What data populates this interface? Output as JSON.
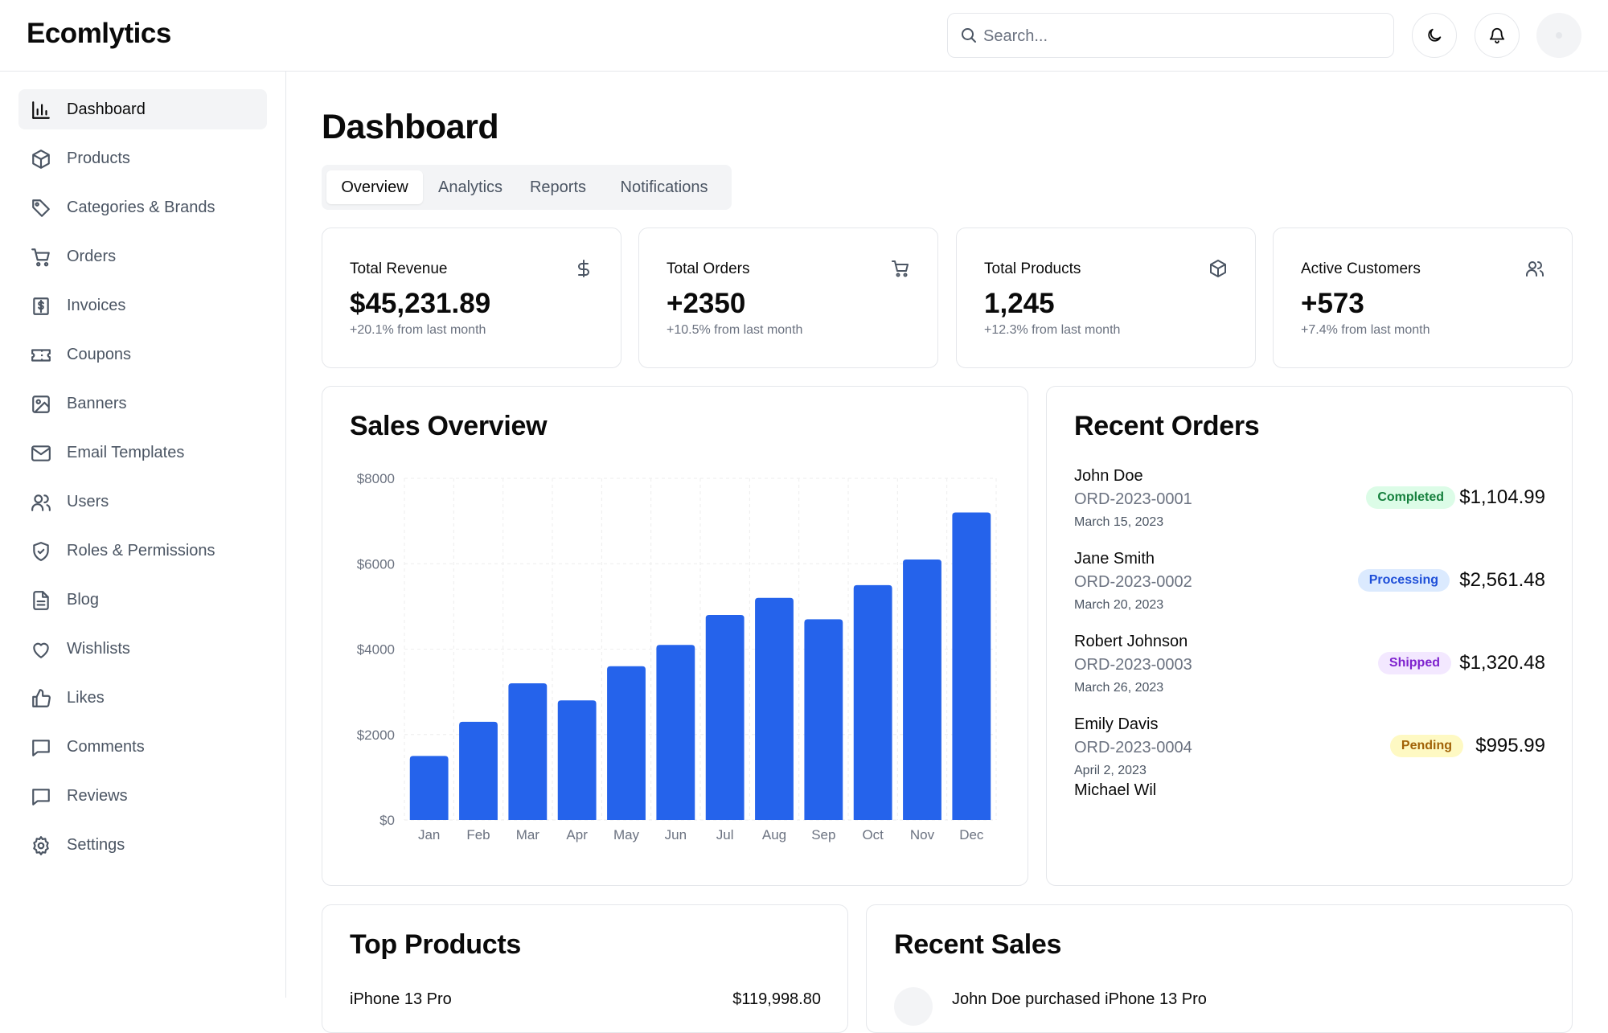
{
  "app": {
    "name": "Ecomlytics"
  },
  "header": {
    "search_placeholder": "Search...",
    "icons": [
      "search-icon",
      "moon-icon",
      "bell-icon"
    ]
  },
  "sidebar": {
    "items": [
      {
        "label": "Dashboard",
        "icon": "bar-chart-icon",
        "active": true
      },
      {
        "label": "Products",
        "icon": "package-icon"
      },
      {
        "label": "Categories & Brands",
        "icon": "tag-icon"
      },
      {
        "label": "Orders",
        "icon": "cart-icon"
      },
      {
        "label": "Invoices",
        "icon": "invoice-icon"
      },
      {
        "label": "Coupons",
        "icon": "ticket-icon"
      },
      {
        "label": "Banners",
        "icon": "image-icon"
      },
      {
        "label": "Email Templates",
        "icon": "mail-icon"
      },
      {
        "label": "Users",
        "icon": "users-icon"
      },
      {
        "label": "Roles & Permissions",
        "icon": "shield-icon"
      },
      {
        "label": "Blog",
        "icon": "file-text-icon"
      },
      {
        "label": "Wishlists",
        "icon": "heart-icon"
      },
      {
        "label": "Likes",
        "icon": "thumbs-up-icon"
      },
      {
        "label": "Comments",
        "icon": "comment-icon"
      },
      {
        "label": "Reviews",
        "icon": "review-icon"
      },
      {
        "label": "Settings",
        "icon": "gear-icon"
      }
    ]
  },
  "main": {
    "title": "Dashboard",
    "tabs": [
      {
        "label": "Overview",
        "active": true
      },
      {
        "label": "Analytics"
      },
      {
        "label": "Reports"
      },
      {
        "label": "Notifications"
      }
    ],
    "stats": [
      {
        "label": "Total Revenue",
        "value": "$45,231.89",
        "change": "+20.1% from last month",
        "icon": "dollar-icon"
      },
      {
        "label": "Total Orders",
        "value": "+2350",
        "change": "+10.5% from last month",
        "icon": "cart-icon"
      },
      {
        "label": "Total Products",
        "value": "1,245",
        "change": "+12.3% from last month",
        "icon": "package-icon"
      },
      {
        "label": "Active Customers",
        "value": "+573",
        "change": "+7.4% from last month",
        "icon": "users-icon"
      }
    ],
    "sales_overview": {
      "title": "Sales Overview"
    },
    "recent_orders": {
      "title": "Recent Orders",
      "orders": [
        {
          "name": "John Doe",
          "id": "ORD-2023-0001",
          "date": "March 15, 2023",
          "status": "Completed",
          "amount": "$1,104.99"
        },
        {
          "name": "Jane Smith",
          "id": "ORD-2023-0002",
          "date": "March 20, 2023",
          "status": "Processing",
          "amount": "$2,561.48"
        },
        {
          "name": "Robert Johnson",
          "id": "ORD-2023-0003",
          "date": "March 26, 2023",
          "status": "Shipped",
          "amount": "$1,320.48"
        },
        {
          "name": "Emily Davis",
          "id": "ORD-2023-0004",
          "date": "April 2, 2023",
          "status": "Pending",
          "amount": "$995.99"
        }
      ],
      "truncated_next": "Michael Wil"
    },
    "top_products": {
      "title": "Top Products",
      "first_row": {
        "name": "iPhone 13 Pro",
        "amount": "$119,998.80"
      }
    },
    "recent_sales": {
      "title": "Recent Sales",
      "first_row": {
        "text": "John Doe purchased iPhone 13 Pro"
      }
    }
  },
  "status_colors": {
    "Completed": {
      "bg": "#dcfce7",
      "fg": "#15803d"
    },
    "Processing": {
      "bg": "#dbeafe",
      "fg": "#1d4ed8"
    },
    "Shipped": {
      "bg": "#f3e8ff",
      "fg": "#7e22ce"
    },
    "Pending": {
      "bg": "#fef9c3",
      "fg": "#a16207"
    }
  },
  "colors": {
    "accent": "#2563eb"
  },
  "chart_data": {
    "type": "bar",
    "categories": [
      "Jan",
      "Feb",
      "Mar",
      "Apr",
      "May",
      "Jun",
      "Jul",
      "Aug",
      "Sep",
      "Oct",
      "Nov",
      "Dec"
    ],
    "values": [
      1500,
      2300,
      3200,
      2800,
      3600,
      4100,
      4800,
      5200,
      4700,
      5500,
      6100,
      7200
    ],
    "ylim": [
      0,
      8000
    ],
    "yticks": [
      "$0",
      "$2000",
      "$4000",
      "$6000",
      "$8000"
    ],
    "grid": true,
    "color": "#2563eb"
  }
}
